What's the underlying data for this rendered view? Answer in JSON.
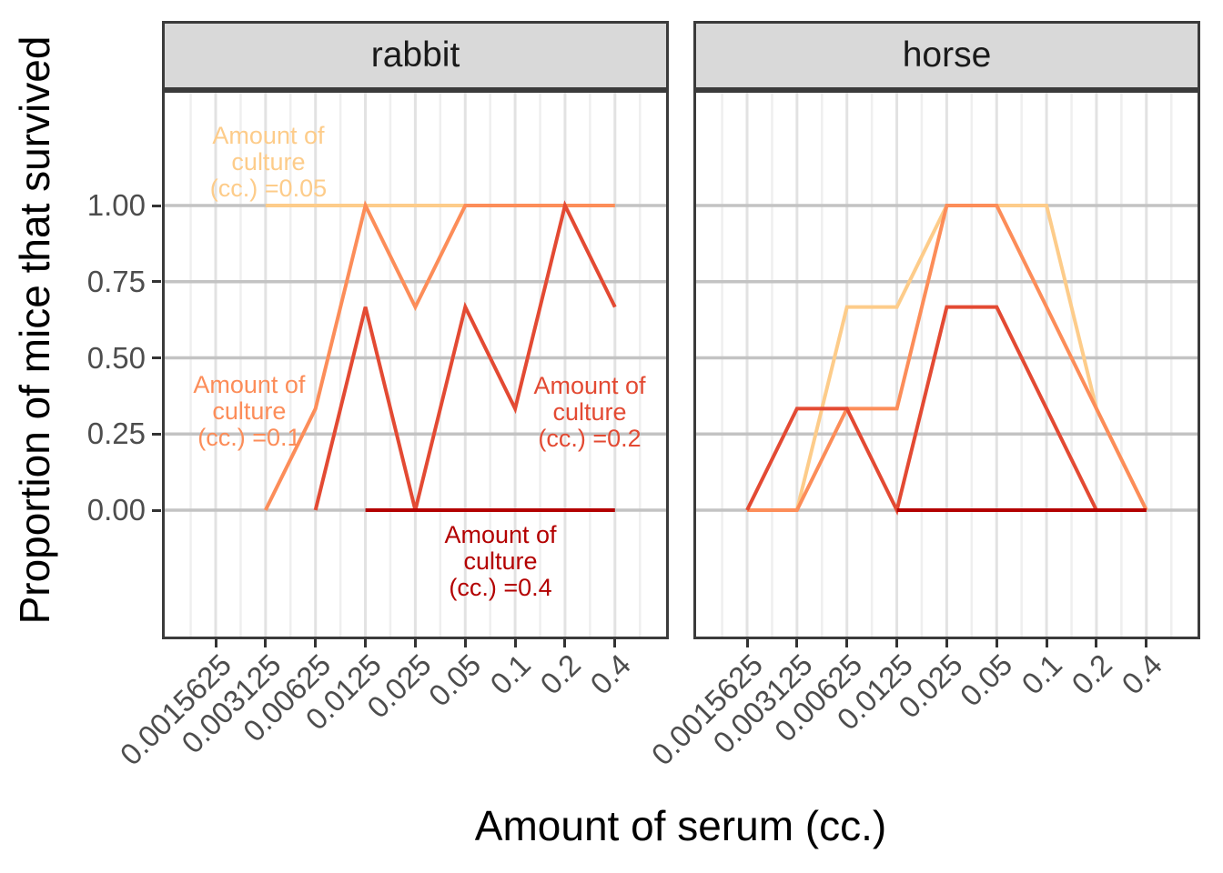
{
  "chart_data": {
    "type": "line",
    "title": "",
    "xlabel": "Amount of serum (cc.)",
    "ylabel": "Proportion of mice that survived",
    "x_scale": "log2",
    "grid": "horizontal major + vertical major/minor, white panel, dark border",
    "legend_position": "none (direct labels drawn inside left panel)",
    "series_variable": "Amount of culture (cc.)",
    "x_ticks": [
      0.0015625,
      0.003125,
      0.00625,
      0.0125,
      0.025,
      0.05,
      0.1,
      0.2,
      0.4
    ],
    "x_tick_labels": [
      "0.0015625",
      "0.003125",
      "0.00625",
      "0.0125",
      "0.025",
      "0.05",
      "0.1",
      "0.2",
      "0.4"
    ],
    "y_tick_labels": [
      "0.00",
      "0.25",
      "0.50",
      "0.75",
      "1.00"
    ],
    "y_tick_values": [
      0,
      0.25,
      0.5,
      0.75,
      1
    ],
    "ylim": [
      -0.43,
      1.38
    ],
    "palette": {
      "culture_0.05": "#FDCC8A",
      "culture_0.1": "#FC8D59",
      "culture_0.2": "#E34A33",
      "culture_0.4": "#B30000"
    },
    "facets": [
      {
        "label": "rabbit",
        "series": [
          {
            "name": "Amount of culture (cc.) = 0.05",
            "color": "#FDCC8A",
            "points": [
              [
                0.003125,
                1
              ],
              [
                0.00625,
                1
              ],
              [
                0.0125,
                1
              ],
              [
                0.025,
                1
              ],
              [
                0.05,
                1
              ],
              [
                0.1,
                1
              ],
              [
                0.2,
                1
              ],
              [
                0.4,
                1
              ]
            ]
          },
          {
            "name": "Amount of culture (cc.) = 0.1",
            "color": "#FC8D59",
            "points": [
              [
                0.003125,
                0
              ],
              [
                0.00625,
                0.333
              ],
              [
                0.0125,
                1
              ],
              [
                0.025,
                0.667
              ],
              [
                0.05,
                1
              ],
              [
                0.1,
                1
              ],
              [
                0.2,
                1
              ],
              [
                0.4,
                1
              ]
            ]
          },
          {
            "name": "Amount of culture (cc.) = 0.2",
            "color": "#E34A33",
            "points": [
              [
                0.00625,
                0
              ],
              [
                0.0125,
                0.667
              ],
              [
                0.025,
                0
              ],
              [
                0.05,
                0.667
              ],
              [
                0.1,
                0.333
              ],
              [
                0.2,
                1
              ],
              [
                0.4,
                0.667
              ]
            ]
          },
          {
            "name": "Amount of culture (cc.) = 0.4",
            "color": "#B30000",
            "points": [
              [
                0.0125,
                0
              ],
              [
                0.025,
                0
              ],
              [
                0.05,
                0
              ],
              [
                0.1,
                0
              ],
              [
                0.2,
                0
              ],
              [
                0.4,
                0
              ]
            ]
          }
        ],
        "annotations": [
          {
            "lines": [
              "Amount of",
              "culture",
              "(cc.) =0.05"
            ],
            "color": "#FDCC8A",
            "x": 0.00325,
            "y": 1.203
          },
          {
            "lines": [
              "Amount of",
              "culture",
              "(cc.) =0.1"
            ],
            "color": "#FC8D59",
            "x": 0.00249,
            "y": 0.385
          },
          {
            "lines": [
              "Amount of",
              "culture",
              "(cc.) =0.2"
            ],
            "color": "#E34A33",
            "x": 0.2816,
            "y": 0.382
          },
          {
            "lines": [
              "Amount of",
              "culture",
              "(cc.) =0.4"
            ],
            "color": "#B30000",
            "x": 0.0816,
            "y": -0.1075
          }
        ]
      },
      {
        "label": "horse",
        "series": [
          {
            "name": "Amount of culture (cc.) = 0.05",
            "color": "#FDCC8A",
            "points": [
              [
                0.003125,
                0
              ],
              [
                0.00625,
                0.667
              ],
              [
                0.0125,
                0.667
              ],
              [
                0.025,
                1
              ],
              [
                0.05,
                1
              ],
              [
                0.1,
                1
              ],
              [
                0.2,
                0.333
              ],
              [
                0.4,
                0
              ]
            ]
          },
          {
            "name": "Amount of culture (cc.) = 0.1",
            "color": "#FC8D59",
            "points": [
              [
                0.0015625,
                0
              ],
              [
                0.003125,
                0
              ],
              [
                0.00625,
                0.333
              ],
              [
                0.0125,
                0.333
              ],
              [
                0.025,
                1
              ],
              [
                0.05,
                1
              ],
              [
                0.1,
                0.667
              ],
              [
                0.2,
                0.333
              ],
              [
                0.4,
                0
              ]
            ]
          },
          {
            "name": "Amount of culture (cc.) = 0.2",
            "color": "#E34A33",
            "points": [
              [
                0.0015625,
                0
              ],
              [
                0.003125,
                0.333
              ],
              [
                0.00625,
                0.333
              ],
              [
                0.0125,
                0
              ],
              [
                0.025,
                0.667
              ],
              [
                0.05,
                0.667
              ],
              [
                0.1,
                0.333
              ],
              [
                0.2,
                0
              ],
              [
                0.4,
                0
              ]
            ]
          },
          {
            "name": "Amount of culture (cc.) = 0.4",
            "color": "#B30000",
            "points": [
              [
                0.0125,
                0
              ],
              [
                0.025,
                0
              ],
              [
                0.05,
                0
              ],
              [
                0.1,
                0
              ],
              [
                0.2,
                0
              ],
              [
                0.4,
                0
              ]
            ]
          }
        ],
        "annotations": []
      }
    ],
    "style_colors": {
      "strip_bg": "#D9D9D9",
      "panel_border": "#3B3B3B",
      "h_major_grid": "#C3C3C3",
      "v_major_grid": "#E2E2E2",
      "v_minor_grid": "#EFEFEF",
      "tick_text": "#4D4D4D"
    }
  }
}
